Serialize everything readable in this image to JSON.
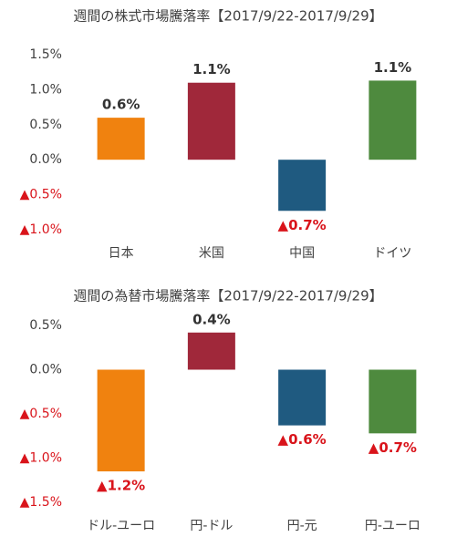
{
  "chart_data": [
    {
      "type": "bar",
      "title": "週間の株式市場騰落率【2017/9/22-2017/9/29】",
      "categories": [
        "日本",
        "米国",
        "中国",
        "ドイツ"
      ],
      "values": [
        0.6,
        1.1,
        -0.73,
        1.13
      ],
      "value_labels": [
        "0.6%",
        "1.1%",
        "▲0.7%",
        "1.1%"
      ],
      "colors": [
        "#f0820f",
        "#a0283a",
        "#1f5a80",
        "#4e8a3e"
      ],
      "ylim": [
        -1.0,
        1.5
      ],
      "yticks": [
        {
          "value": 1.5,
          "label": "1.5%"
        },
        {
          "value": 1.0,
          "label": "1.0%"
        },
        {
          "value": 0.5,
          "label": "0.5%"
        },
        {
          "value": 0,
          "label": "0.0%"
        },
        {
          "value": -0.5,
          "label": "▲0.5%"
        },
        {
          "value": -1.0,
          "label": "▲1.0%"
        }
      ],
      "grid": false
    },
    {
      "type": "bar",
      "title": "週間の為替市場騰落率【2017/9/22-2017/9/29】",
      "categories": [
        "ドル-ユーロ",
        "円-ドル",
        "円-元",
        "円-ユーロ"
      ],
      "values": [
        -1.15,
        0.42,
        -0.63,
        -0.72
      ],
      "value_labels": [
        "▲1.2%",
        "0.4%",
        "▲0.6%",
        "▲0.7%"
      ],
      "colors": [
        "#f0820f",
        "#a0283a",
        "#1f5a80",
        "#4e8a3e"
      ],
      "ylim": [
        -1.5,
        0.5
      ],
      "yticks": [
        {
          "value": 0.5,
          "label": "0.5%"
        },
        {
          "value": 0,
          "label": "0.0%"
        },
        {
          "value": -0.5,
          "label": "▲0.5%"
        },
        {
          "value": -1.0,
          "label": "▲1.0%"
        },
        {
          "value": -1.5,
          "label": "▲1.5%"
        }
      ],
      "grid": false
    }
  ]
}
